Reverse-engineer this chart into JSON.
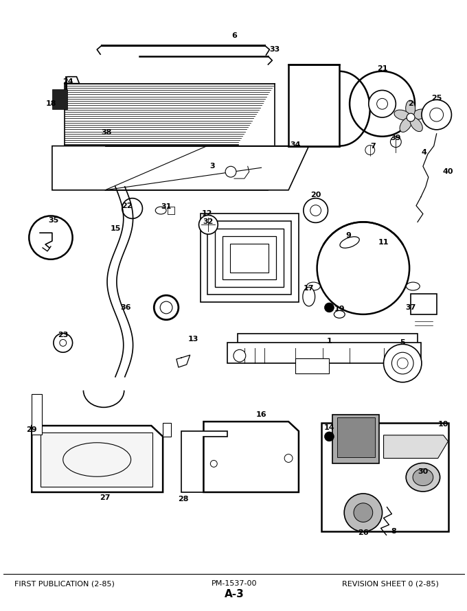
{
  "bottom_left": "FIRST PUBLICATION (2-85)",
  "bottom_center": "PM-1537-00",
  "bottom_page": "A-3",
  "bottom_right": "REVISION SHEET 0 (2-85)",
  "bg_color": "#ffffff",
  "fig_width": 6.8,
  "fig_height": 8.9,
  "dpi": 100
}
